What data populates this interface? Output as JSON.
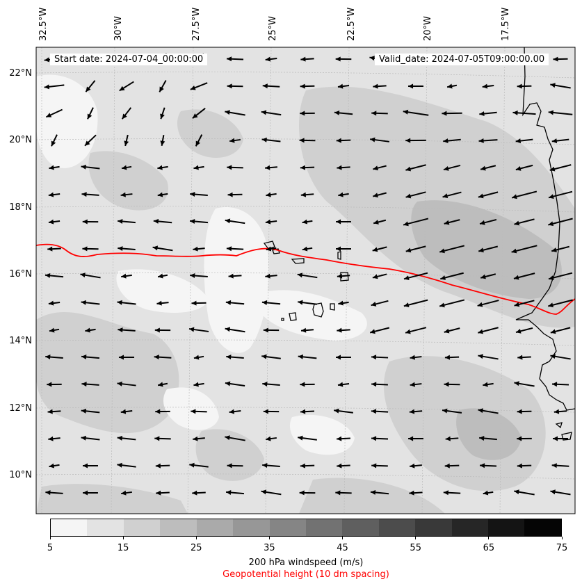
{
  "header": {
    "start_date": "Start date: 2024-07-04_00:00:00",
    "valid_date": "Valid_date: 2024-07-05T09:00:00.00"
  },
  "longitude_labels": [
    "32.5°W",
    "30°W",
    "27.5°W",
    "25°W",
    "22.5°W",
    "20°W",
    "17.5°W"
  ],
  "latitude_labels": [
    "22°N",
    "20°N",
    "18°N",
    "16°N",
    "14°N",
    "12°N",
    "10°N"
  ],
  "colorbar": {
    "ticks": [
      "5",
      "15",
      "25",
      "35",
      "45",
      "55",
      "65",
      "75"
    ],
    "colors": [
      "#f5f5f5",
      "#e3e3e3",
      "#d0d0d0",
      "#bdbdbd",
      "#aaaaaa",
      "#979797",
      "#858585",
      "#727272",
      "#5f5f5f",
      "#4c4c4c",
      "#393939",
      "#262626",
      "#141414",
      "#050505"
    ],
    "label": "200 hPa windspeed (m/s)",
    "sublabel": "Geopotential height (10 dm spacing)",
    "sublabel_color": "#ff0000"
  },
  "map": {
    "lon_range": [
      -33,
      -15.5
    ],
    "lat_range": [
      9,
      22.7
    ],
    "contour_color": "#ff0000",
    "arrow_color": "#000000",
    "coast_color": "#000000",
    "wind_direction": "mostly easterly (arrows pointing west)"
  }
}
